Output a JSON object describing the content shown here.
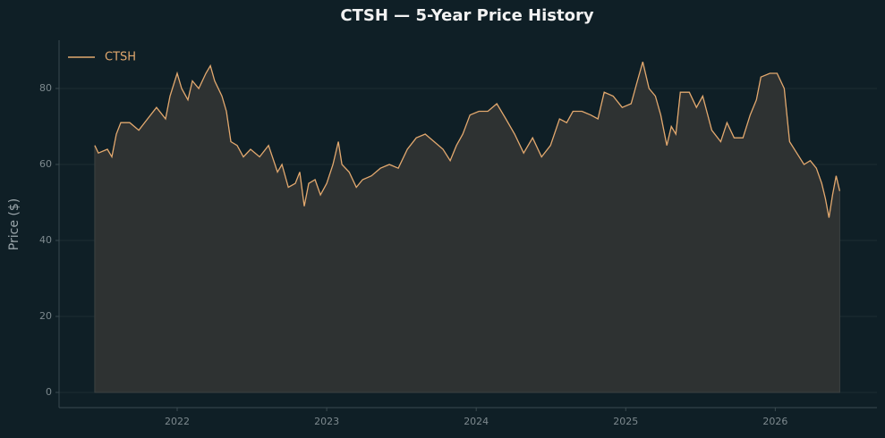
{
  "chart_data": {
    "type": "line",
    "title": "CTSH — 5-Year Price History",
    "ylabel": "Price ($)",
    "x": [
      2021.449,
      2021.473,
      2021.533,
      2021.563,
      2021.593,
      2021.623,
      2021.683,
      2021.743,
      2021.802,
      2021.862,
      2021.922,
      2021.952,
      2022.0,
      2022.03,
      2022.072,
      2022.102,
      2022.144,
      2022.192,
      2022.222,
      2022.251,
      2022.299,
      2022.329,
      2022.359,
      2022.401,
      2022.443,
      2022.491,
      2022.551,
      2022.611,
      2022.671,
      2022.701,
      2022.743,
      2022.79,
      2022.82,
      2022.85,
      2022.88,
      2022.922,
      2022.958,
      2023.0,
      2023.042,
      2023.078,
      2023.102,
      2023.15,
      2023.198,
      2023.24,
      2023.299,
      2023.359,
      2023.419,
      2023.479,
      2023.539,
      2023.599,
      2023.659,
      2023.719,
      2023.778,
      2023.826,
      2023.868,
      2023.91,
      2023.958,
      2024.018,
      2024.078,
      2024.138,
      2024.198,
      2024.257,
      2024.317,
      2024.377,
      2024.437,
      2024.497,
      2024.557,
      2024.605,
      2024.647,
      2024.707,
      2024.766,
      2024.814,
      2024.856,
      2024.916,
      2024.976,
      2025.036,
      2025.078,
      2025.114,
      2025.156,
      2025.198,
      2025.234,
      2025.275,
      2025.305,
      2025.335,
      2025.365,
      2025.425,
      2025.473,
      2025.515,
      2025.575,
      2025.635,
      2025.677,
      2025.725,
      2025.784,
      2025.832,
      2025.874,
      2025.904,
      2025.964,
      2026.012,
      2026.06,
      2026.096,
      2026.144,
      2026.192,
      2026.234,
      2026.275,
      2026.311,
      2026.335,
      2026.359,
      2026.383,
      2026.407,
      2026.431
    ],
    "series": [
      {
        "name": "CTSH",
        "color": "#e2a86e",
        "fill": "#2e3232",
        "values": [
          65,
          63,
          64,
          62,
          68,
          71,
          71,
          69,
          72,
          75,
          72,
          78,
          84,
          80,
          77,
          82,
          80,
          84,
          86,
          82,
          78,
          74,
          66,
          65,
          62,
          64,
          62,
          65,
          58,
          60,
          54,
          55,
          58,
          49,
          55,
          56,
          52,
          55,
          60,
          66,
          60,
          58,
          54,
          56,
          57,
          59,
          60,
          59,
          64,
          67,
          68,
          66,
          64,
          61,
          65,
          68,
          73,
          74,
          74,
          76,
          72,
          68,
          63,
          67,
          62,
          65,
          72,
          71,
          74,
          74,
          73,
          72,
          79,
          78,
          75,
          76,
          82,
          87,
          80,
          78,
          73,
          65,
          70,
          68,
          79,
          79,
          75,
          78,
          69,
          66,
          71,
          67,
          67,
          73,
          77,
          83,
          84,
          84,
          80,
          66,
          63,
          60,
          61,
          59,
          55,
          51,
          46,
          52,
          57,
          53
        ]
      }
    ],
    "xlim": [
      2021.21,
      2026.68
    ],
    "xticks": [
      2022,
      2023,
      2024,
      2025,
      2026
    ],
    "ylim": [
      -4,
      92.7
    ],
    "yticks": [
      0,
      20,
      40,
      60,
      80
    ],
    "grid": true,
    "legend": "upper left"
  }
}
